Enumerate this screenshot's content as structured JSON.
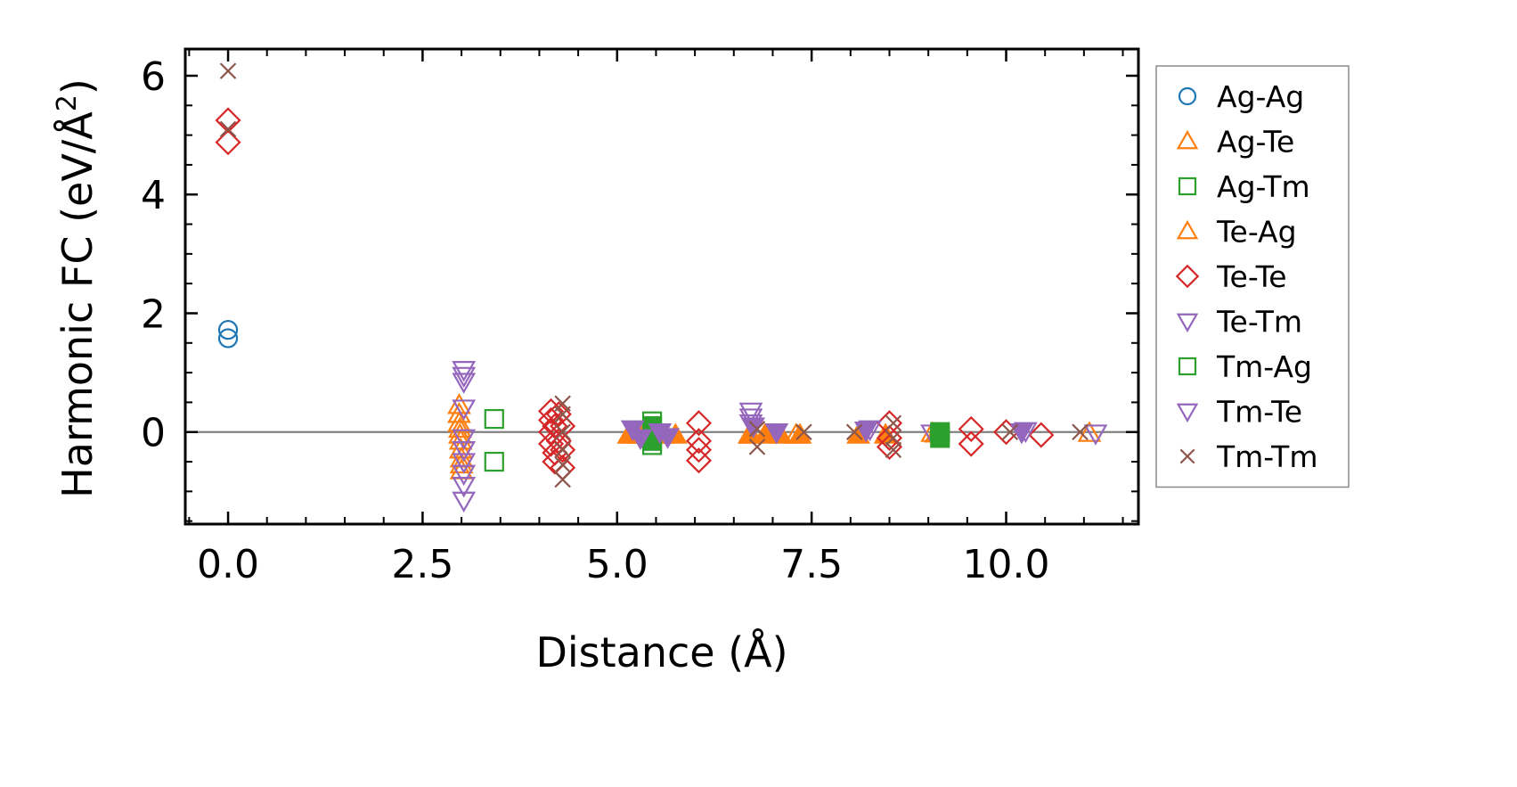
{
  "chart_data": {
    "type": "scatter",
    "title": "",
    "xlabel": "Distance (Å)",
    "ylabel_main": "Harmonic FC (eV/Å",
    "ylabel_sup": "2",
    "ylabel_close": ")",
    "xlim": [
      -0.55,
      11.7
    ],
    "ylim": [
      -1.55,
      6.45
    ],
    "xticks": [
      0.0,
      2.5,
      5.0,
      7.5,
      10.0
    ],
    "xtick_labels": [
      "0.0",
      "2.5",
      "5.0",
      "7.5",
      "10.0"
    ],
    "yticks": [
      0,
      2,
      4,
      6
    ],
    "ytick_labels": [
      "0",
      "2",
      "4",
      "6"
    ],
    "reference_line_y": 0,
    "legend_position": "outside-right",
    "series": [
      {
        "name": "Ag-Ag",
        "marker": "circle",
        "filled": false,
        "color": "#1f77b4",
        "x": [
          0.0,
          0.0
        ],
        "y": [
          1.72,
          1.58
        ]
      },
      {
        "name": "Ag-Te",
        "marker": "triangle-up",
        "filled": false,
        "color": "#ff7f0e",
        "x": [
          2.97,
          2.97,
          2.97,
          2.98,
          2.98,
          2.99,
          2.99,
          3.0,
          3.0,
          3.0,
          5.2,
          5.6,
          6.72,
          7.3,
          9.05,
          11.07
        ],
        "y": [
          0.45,
          0.3,
          0.15,
          0.05,
          -0.05,
          -0.15,
          -0.3,
          -0.45,
          -0.55,
          -0.65,
          -0.05,
          -0.05,
          -0.05,
          -0.05,
          -0.02,
          -0.02
        ]
      },
      {
        "name": "Ag-Tm",
        "marker": "square",
        "filled": false,
        "color": "#2ca02c",
        "x": [
          3.42,
          3.42,
          5.45,
          5.45,
          5.45
        ],
        "y": [
          0.22,
          -0.5,
          0.18,
          -0.05,
          -0.22
        ]
      },
      {
        "name": "Te-Ag",
        "marker": "triangle-up",
        "filled": true,
        "color": "#ff7f0e",
        "x": [
          5.15,
          5.3,
          5.55,
          5.75,
          6.7,
          6.9,
          7.1,
          7.35,
          8.1,
          8.45,
          9.1
        ],
        "y": [
          -0.05,
          -0.05,
          -0.05,
          -0.05,
          -0.05,
          -0.05,
          -0.05,
          -0.05,
          -0.05,
          -0.05,
          -0.03
        ]
      },
      {
        "name": "Te-Te",
        "marker": "diamond",
        "filled": false,
        "color": "#d62728",
        "x": [
          0.0,
          0.0,
          4.15,
          4.15,
          4.15,
          4.15,
          4.2,
          4.2,
          4.2,
          4.25,
          4.25,
          4.3,
          4.3,
          4.3,
          6.05,
          6.05,
          6.05,
          6.05,
          8.5,
          8.5,
          8.5,
          9.55,
          9.55,
          10.45,
          10.0
        ],
        "y": [
          5.25,
          4.88,
          0.35,
          0.2,
          0.0,
          -0.2,
          -0.35,
          -0.5,
          0.1,
          0.3,
          -0.15,
          0.1,
          -0.3,
          -0.6,
          0.15,
          -0.15,
          -0.3,
          -0.48,
          0.15,
          -0.1,
          -0.25,
          0.05,
          -0.2,
          -0.05,
          0.0
        ]
      },
      {
        "name": "Te-Tm",
        "marker": "triangle-down",
        "filled": false,
        "color": "#9467bd",
        "x": [
          3.03,
          3.03,
          3.03,
          3.03,
          3.03,
          3.03,
          3.03,
          3.03,
          3.03,
          3.03,
          6.72,
          6.72,
          6.72,
          8.25,
          9.05,
          10.25,
          11.15
        ],
        "y": [
          1.05,
          0.95,
          0.85,
          0.4,
          -0.1,
          -0.3,
          -0.5,
          -0.7,
          -0.9,
          -1.15,
          0.35,
          0.25,
          0.15,
          0.05,
          -0.02,
          0.02,
          -0.02
        ]
      },
      {
        "name": "Tm-Ag",
        "marker": "square",
        "filled": true,
        "color": "#2ca02c",
        "x": [
          5.45,
          5.45,
          5.45,
          9.15,
          9.15
        ],
        "y": [
          0.1,
          -0.02,
          -0.15,
          0.0,
          -0.1
        ]
      },
      {
        "name": "Tm-Te",
        "marker": "triangle-down",
        "filled": true,
        "color": "#9467bd",
        "x": [
          5.2,
          5.3,
          5.55,
          5.65,
          6.75,
          7.05,
          8.2,
          10.2
        ],
        "y": [
          0.05,
          -0.1,
          0.0,
          -0.08,
          0.1,
          0.0,
          0.03,
          0.0
        ]
      },
      {
        "name": "Tm-Tm",
        "marker": "x",
        "filled": false,
        "color": "#8c564b",
        "x": [
          0.0,
          0.0,
          4.3,
          4.3,
          4.3,
          4.3,
          4.3,
          4.3,
          6.8,
          6.8,
          7.4,
          8.05,
          8.55,
          8.55,
          8.55,
          10.05,
          10.95
        ],
        "y": [
          6.08,
          5.1,
          0.48,
          0.3,
          0.0,
          -0.3,
          -0.55,
          -0.8,
          0.05,
          -0.25,
          0.0,
          0.0,
          0.15,
          -0.1,
          -0.3,
          0.0,
          0.0
        ]
      }
    ]
  },
  "legend_title": ""
}
